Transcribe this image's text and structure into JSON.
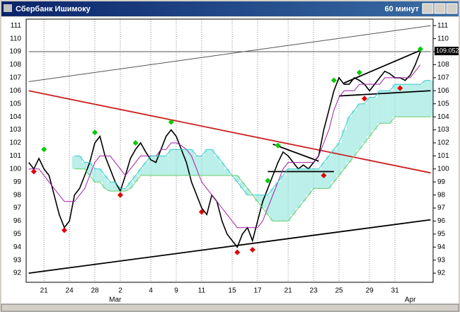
{
  "window": {
    "title": "Сбербанк Ишимоку",
    "timeframe": "60 минут"
  },
  "chart_data": {
    "type": "line",
    "categories": [
      null,
      null,
      null,
      "21",
      null,
      null,
      null,
      null,
      "24",
      null,
      null,
      null,
      null,
      "28",
      null,
      null,
      null,
      null,
      "2",
      null,
      null,
      null,
      null,
      null,
      "4",
      null,
      null,
      null,
      null,
      "9",
      null,
      null,
      null,
      null,
      "11",
      null,
      null,
      null,
      null,
      null,
      "15",
      null,
      null,
      null,
      null,
      "17",
      null,
      null,
      null,
      null,
      null,
      "21",
      null,
      null,
      null,
      null,
      "23",
      null,
      null,
      null,
      null,
      "25",
      null,
      null,
      null,
      null,
      null,
      "29",
      null,
      null,
      null,
      null,
      "31",
      null,
      null,
      null,
      null,
      null,
      null,
      null
    ],
    "months": [
      null,
      null,
      null,
      null,
      null,
      null,
      null,
      null,
      null,
      null,
      null,
      null,
      null,
      null,
      null,
      null,
      null,
      "Mar",
      null,
      null,
      null,
      null,
      null,
      null,
      null,
      null,
      null,
      null,
      null,
      null,
      null,
      null,
      null,
      null,
      null,
      null,
      null,
      null,
      null,
      null,
      null,
      null,
      null,
      null,
      null,
      null,
      null,
      null,
      null,
      null,
      null,
      null,
      null,
      null,
      null,
      null,
      null,
      null,
      null,
      null,
      null,
      null,
      null,
      null,
      null,
      null,
      null,
      null,
      null,
      null,
      null,
      null,
      null,
      null,
      null,
      "Apr",
      null,
      null,
      null,
      null
    ],
    "series": [
      {
        "color": "#000000",
        "values": [
          100.5,
          100,
          100.8,
          100,
          99.5,
          98,
          96.5,
          95.5,
          96,
          98,
          98.5,
          99.5,
          100.5,
          102,
          102.5,
          101,
          100,
          99,
          98.3,
          99.5,
          100.8,
          101.5,
          102,
          101.3,
          100.7,
          100.5,
          101.5,
          102.5,
          103,
          102.5,
          101.5,
          100.5,
          99,
          98,
          97,
          96.5,
          98,
          97.5,
          96,
          95,
          94.5,
          94,
          95,
          95.5,
          94.5,
          96,
          97.5,
          98.5,
          99.5,
          100.5,
          101.3,
          101,
          100.5,
          100,
          100.3,
          100,
          100.5,
          101,
          103,
          104.5,
          106,
          107,
          106.5,
          106.5,
          107,
          106.8,
          106.5,
          106,
          106.5,
          107,
          107.5,
          107.3,
          107,
          107,
          106.8,
          107.2,
          108,
          109,
          null,
          null
        ]
      },
      {
        "color": "#a020a0",
        "values": [
          100,
          100,
          100,
          99.5,
          99,
          98.5,
          98,
          97.5,
          97.5,
          97.5,
          98,
          98.5,
          99.5,
          100.5,
          101,
          101,
          101,
          100.5,
          100,
          99.5,
          100,
          100.5,
          101,
          101,
          101,
          101,
          101.5,
          101.5,
          102,
          102,
          101.8,
          101.5,
          101,
          100,
          99,
          98.5,
          98,
          97.5,
          97,
          96.5,
          96,
          95.5,
          95.5,
          95.5,
          95.5,
          95.5,
          96,
          97,
          98,
          99,
          100,
          100.5,
          100.5,
          100.5,
          100.5,
          100.5,
          100.5,
          101,
          102,
          103,
          104.5,
          105.5,
          106,
          106,
          106,
          106.5,
          106.5,
          106.5,
          106.5,
          106.5,
          107,
          107,
          107,
          107,
          107,
          107,
          107.5,
          108,
          null,
          null
        ]
      },
      {
        "color": "#33cccc",
        "values": [
          null,
          null,
          null,
          null,
          null,
          null,
          null,
          null,
          null,
          101,
          101,
          100.5,
          100.5,
          100,
          100,
          99.5,
          99,
          99,
          98.5,
          98.5,
          99,
          99.5,
          100,
          100.5,
          101,
          101,
          101,
          101,
          101.5,
          101.5,
          101.5,
          101.5,
          101.5,
          101,
          101,
          101.5,
          101.5,
          101,
          100.5,
          100,
          99.5,
          99,
          98.5,
          98,
          98,
          98,
          98,
          98,
          98.5,
          99,
          99.5,
          100,
          100,
          100,
          100,
          100,
          100,
          100,
          100.5,
          101,
          101.5,
          102,
          103,
          104,
          104.5,
          105,
          105,
          105.5,
          105.5,
          106,
          106,
          106,
          106.5,
          106.5,
          106.5,
          106.5,
          106.5,
          106.5,
          106.8,
          106.8
        ]
      },
      {
        "color": "#66cc66",
        "values": [
          null,
          null,
          null,
          null,
          null,
          null,
          null,
          null,
          null,
          100,
          100,
          100,
          99.5,
          99,
          99,
          98.5,
          98.3,
          98.3,
          98.3,
          98.3,
          98.5,
          99,
          99.5,
          99.5,
          99.5,
          99.5,
          99.5,
          99.5,
          99.5,
          99.5,
          99.5,
          99.5,
          99.5,
          99.5,
          99.5,
          99.5,
          99.5,
          99.5,
          99.5,
          99.5,
          99.5,
          99.5,
          99,
          98.5,
          98,
          97.5,
          97,
          96.5,
          96,
          96,
          96,
          96,
          96.5,
          97,
          97.5,
          98,
          98.5,
          98.5,
          98.5,
          98.5,
          99,
          99.5,
          100,
          100.5,
          101,
          101.5,
          102,
          102.5,
          103,
          103.5,
          103.5,
          103.5,
          104,
          104,
          104,
          104,
          104,
          104,
          104,
          104
        ]
      }
    ],
    "cloud_color": "#9ee8e0",
    "up_markers": {
      "color": "#00cc00",
      "x": [
        3,
        13,
        21,
        28,
        47,
        49,
        60,
        65,
        77
      ],
      "y": [
        101.5,
        102.8,
        102,
        103.6,
        99.1,
        101.8,
        106.8,
        107.4,
        109.2
      ]
    },
    "down_markers": {
      "color": "#e00000",
      "x": [
        1,
        7,
        18,
        34,
        41,
        44,
        58,
        66,
        73
      ],
      "y": [
        99.8,
        95.3,
        98,
        96.7,
        93.6,
        93.8,
        99.5,
        105.4,
        106.2
      ]
    },
    "trend_lines": [
      {
        "color": "#cc2020",
        "x": [
          0,
          79
        ],
        "y": [
          106,
          99.7
        ]
      },
      {
        "color": "#000000",
        "x": [
          0,
          79
        ],
        "y": [
          92,
          96.1
        ]
      },
      {
        "color": "#555555",
        "x": [
          0,
          79
        ],
        "y": [
          106.7,
          111
        ]
      },
      {
        "color": "#555555",
        "x": [
          0,
          79
        ],
        "y": [
          109,
          109
        ]
      },
      {
        "color": "#000000",
        "x": [
          48,
          57
        ],
        "y": [
          101.9,
          100.6
        ]
      },
      {
        "color": "#000000",
        "x": [
          47,
          60
        ],
        "y": [
          99.8,
          99.8
        ]
      },
      {
        "color": "#000000",
        "x": [
          61,
          79
        ],
        "y": [
          105.6,
          106
        ]
      },
      {
        "color": "#000000",
        "x": [
          62,
          77
        ],
        "y": [
          106.6,
          109.1
        ]
      }
    ],
    "last_price": {
      "value": 109.052,
      "label": "109.052"
    },
    "ylim": [
      91.3,
      111.5
    ],
    "yticks": [
      92,
      93,
      94,
      95,
      96,
      97,
      98,
      99,
      100,
      101,
      102,
      103,
      104,
      105,
      106,
      107,
      108,
      109,
      110,
      111
    ],
    "grid": "x"
  }
}
